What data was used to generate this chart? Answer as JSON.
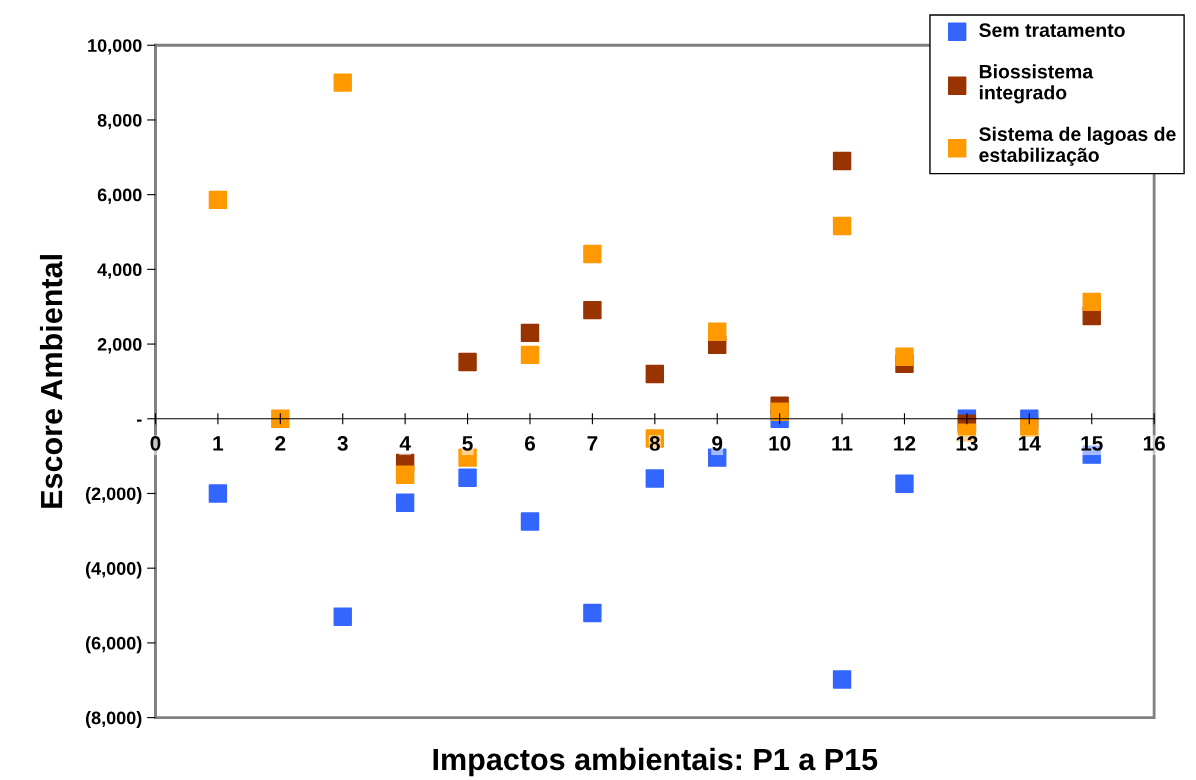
{
  "chart_data": {
    "type": "scatter",
    "xlabel": "Impactos ambientais: P1 a P15",
    "ylabel": "Escore Ambiental",
    "x": [
      1,
      2,
      3,
      4,
      5,
      6,
      7,
      8,
      9,
      10,
      11,
      12,
      13,
      14,
      15
    ],
    "series": [
      {
        "name": "Sem tratamento",
        "color": "#3366ff",
        "values": [
          -2000,
          null,
          -5300,
          -2250,
          -1580,
          -2750,
          -5200,
          -1600,
          -1040,
          0,
          -6980,
          -1740,
          0,
          0,
          -960
        ]
      },
      {
        "name": "Biossistema integrado",
        "color": "#993300",
        "values": [
          null,
          null,
          null,
          -1180,
          1520,
          2300,
          2910,
          1200,
          1980,
          350,
          6900,
          1470,
          -130,
          null,
          2750
        ]
      },
      {
        "name": "Sistema de lagoas de estabilização",
        "color": "#ff9900",
        "values": [
          5860,
          0,
          9000,
          -1500,
          -1040,
          1710,
          4410,
          -530,
          2330,
          190,
          5160,
          1660,
          -370,
          -240,
          3130
        ]
      }
    ],
    "xlim": [
      0,
      16
    ],
    "xticks": [
      0,
      1,
      2,
      3,
      4,
      5,
      6,
      7,
      8,
      9,
      10,
      11,
      12,
      13,
      14,
      15,
      16
    ],
    "ylim": [
      -8000,
      10000
    ],
    "yticks": [
      {
        "value": -8000,
        "label": "(8,000)"
      },
      {
        "value": -6000,
        "label": "(6,000)"
      },
      {
        "value": -4000,
        "label": "(4,000)"
      },
      {
        "value": -2000,
        "label": "(2,000)"
      },
      {
        "value": 0,
        "label": "-"
      },
      {
        "value": 2000,
        "label": "2,000"
      },
      {
        "value": 4000,
        "label": "4,000"
      },
      {
        "value": 6000,
        "label": "6,000"
      },
      {
        "value": 8000,
        "label": "8,000"
      },
      {
        "value": 10000,
        "label": "10,000"
      }
    ],
    "marker": "square",
    "legend": "top right",
    "grid": false
  }
}
